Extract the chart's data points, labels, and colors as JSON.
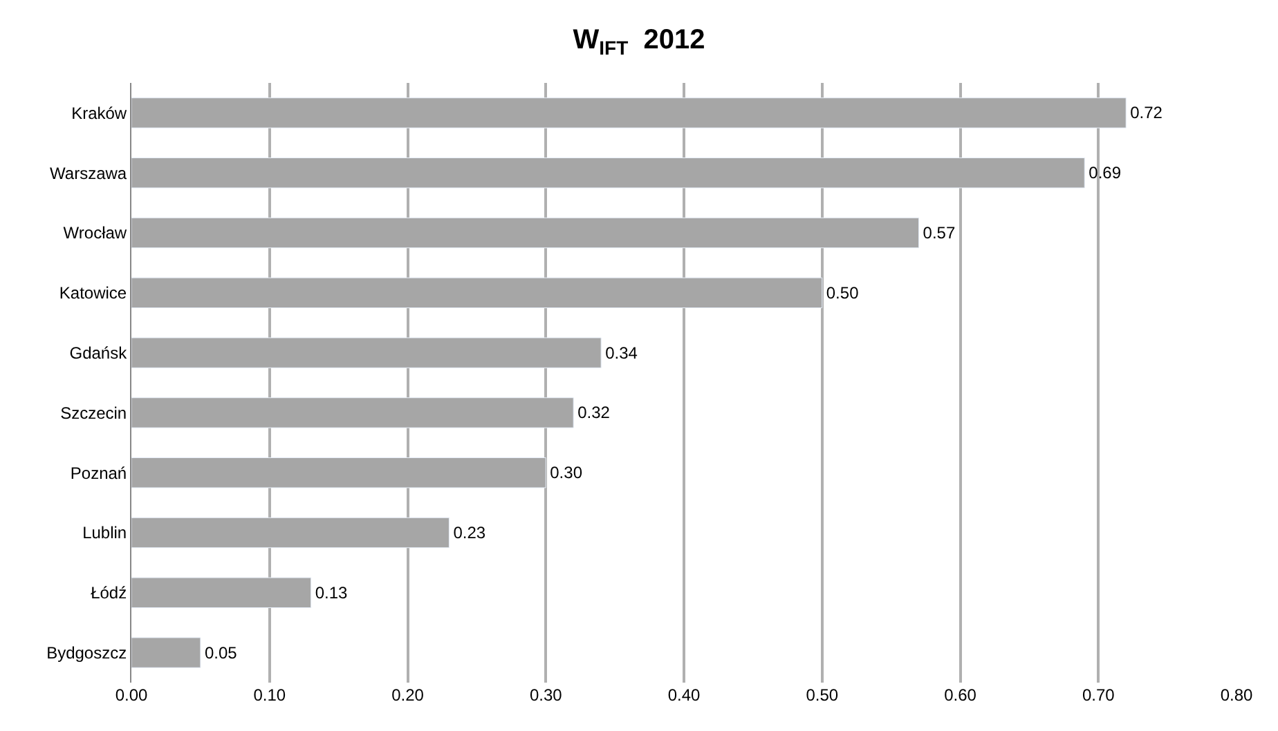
{
  "chart_data": {
    "type": "bar",
    "orientation": "horizontal",
    "title": "W$_{IFT}$  2012",
    "categories": [
      "Kraków",
      "Warszawa",
      "Wrocław",
      "Katowice",
      "Gdańsk",
      "Szczecin",
      "Poznań",
      "Lublin",
      "Łódź",
      "Bydgoszcz"
    ],
    "values": [
      0.72,
      0.69,
      0.57,
      0.5,
      0.34,
      0.32,
      0.3,
      0.23,
      0.13,
      0.05
    ],
    "value_labels": [
      "0.72",
      "0.69",
      "0.57",
      "0.50",
      "0.34",
      "0.32",
      "0.30",
      "0.23",
      "0.13",
      "0.05"
    ],
    "color": "#a6a6a6",
    "xlim": [
      0,
      0.8
    ],
    "xticks": [
      {
        "value": 0,
        "label": "0.00"
      },
      {
        "value": 0.1,
        "label": "0.10"
      },
      {
        "value": 0.2,
        "label": "0.20"
      },
      {
        "value": 0.3,
        "label": "0.30"
      },
      {
        "value": 0.4,
        "label": "0.40"
      },
      {
        "value": 0.5,
        "label": "0.50"
      },
      {
        "value": 0.6,
        "label": "0.60"
      },
      {
        "value": 0.7,
        "label": "0.70"
      },
      {
        "value": 0.8,
        "label": "0.80"
      }
    ],
    "grid": "x",
    "legend": false
  }
}
